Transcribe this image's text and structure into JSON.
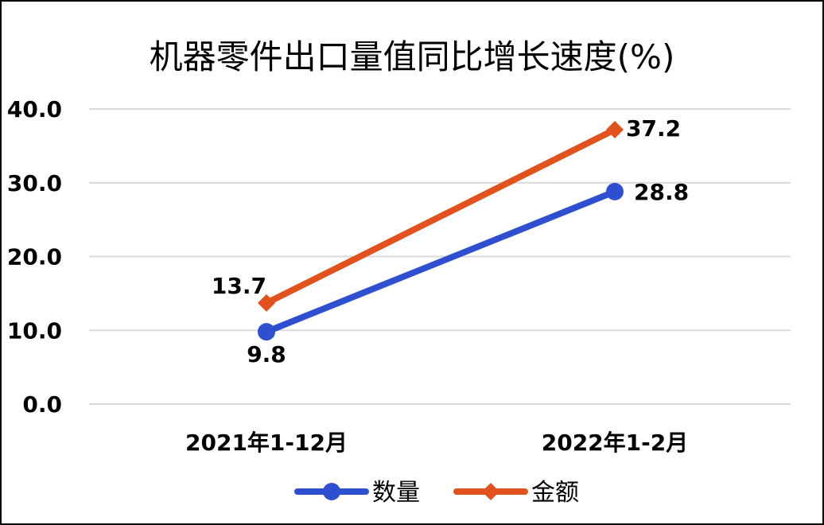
{
  "chart_data": {
    "type": "line",
    "title": "机器零件出口量值同比增长速度(%)",
    "categories": [
      "2021年1-12月",
      "2022年1-2月"
    ],
    "series": [
      {
        "name": "数量",
        "values": [
          9.8,
          28.8
        ],
        "color": "#2e4fcf",
        "marker": "circle",
        "labels": [
          "9.8",
          "28.8"
        ]
      },
      {
        "name": "金额",
        "values": [
          13.7,
          37.2
        ],
        "color": "#e2521c",
        "marker": "diamond",
        "labels": [
          "13.7",
          "37.2"
        ]
      }
    ],
    "ylim": [
      0,
      40
    ],
    "yticks": [
      0,
      10,
      20,
      30,
      40
    ],
    "ytick_labels": [
      "0.0",
      "10.0",
      "20.0",
      "30.0",
      "40.0"
    ],
    "grid": true,
    "gridline_color": "#d9d9d9",
    "legend": "bottom"
  }
}
